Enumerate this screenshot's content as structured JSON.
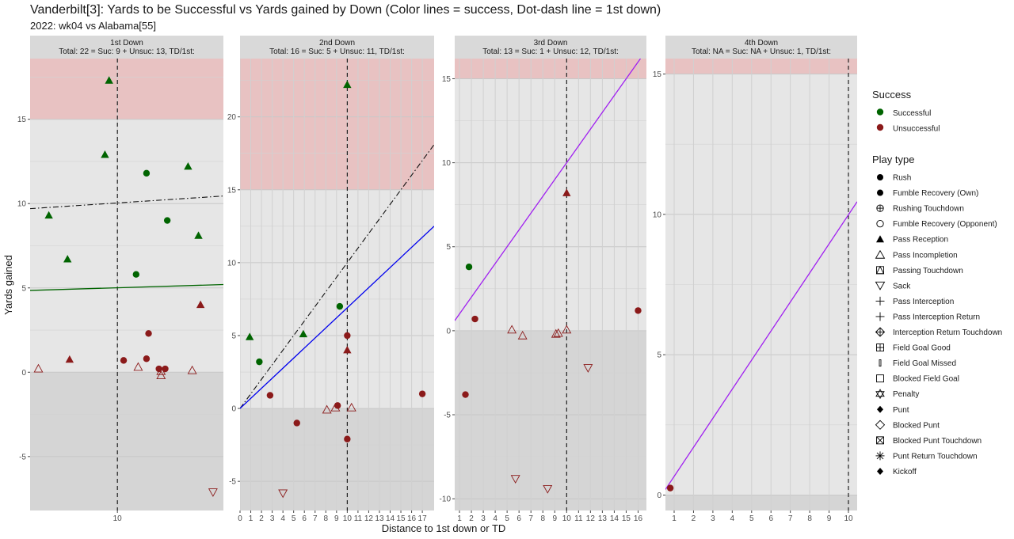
{
  "title": "Vanderbilt[3]: Yards to be Successful vs Yards gained by Down  (Color lines = success, Dot-dash line = 1st down)",
  "subtitle": "2022: wk04 vs Alabama[55]",
  "xlabel": "Distance to 1st down or TD",
  "ylabel": "Yards gained",
  "colors": {
    "successful": "#006400",
    "unsuccessful": "#8b1a1a",
    "panel_bg": "#e6e6e6",
    "strip_bg": "#d9d9d9",
    "success_zone": "#e8c2c2",
    "negative_zone": "#d5d5d5",
    "line_1st": "#006400",
    "line_2nd": "#0000ee",
    "line_3rd_4th": "#a020f0"
  },
  "legend": {
    "success_title": "Success",
    "success_items": [
      {
        "label": "Successful",
        "color": "#006400"
      },
      {
        "label": "Unsuccessful",
        "color": "#8b1a1a"
      }
    ],
    "playtype_title": "Play type",
    "playtype_items": [
      {
        "label": "Rush",
        "icon": "filled-circle"
      },
      {
        "label": "Fumble Recovery (Own)",
        "icon": "filled-circle"
      },
      {
        "label": "Rushing Touchdown",
        "icon": "circle-plus"
      },
      {
        "label": "Fumble Recovery (Opponent)",
        "icon": "open-circle"
      },
      {
        "label": "Pass Reception",
        "icon": "filled-triangle"
      },
      {
        "label": "Pass Incompletion",
        "icon": "open-triangle"
      },
      {
        "label": "Passing Touchdown",
        "icon": "square-triangle"
      },
      {
        "label": "Sack",
        "icon": "open-triangle-down"
      },
      {
        "label": "Pass Interception",
        "icon": "plus"
      },
      {
        "label": "Pass Interception Return",
        "icon": "plus"
      },
      {
        "label": "Interception Return Touchdown",
        "icon": "diamond-plus"
      },
      {
        "label": "Field Goal Good",
        "icon": "square-plus"
      },
      {
        "label": "Field Goal Missed",
        "icon": "small-bar"
      },
      {
        "label": "Blocked Field Goal",
        "icon": "open-square"
      },
      {
        "label": "Penalty",
        "icon": "star-of-david"
      },
      {
        "label": "Punt",
        "icon": "filled-diamond"
      },
      {
        "label": "Blocked Punt",
        "icon": "open-diamond"
      },
      {
        "label": "Blocked Punt Touchdown",
        "icon": "square-x"
      },
      {
        "label": "Punt Return Touchdown",
        "icon": "asterisk"
      },
      {
        "label": "Kickoff",
        "icon": "filled-diamond"
      }
    ]
  },
  "chart_data": [
    {
      "type": "scatter",
      "panel": "1st Down",
      "strip_line1": "1st Down",
      "strip_line2": "Total: 22 = Suc: 9 + Unsuc: 13, TD/1st:",
      "xlim": [
        5.8,
        15.1
      ],
      "ylim": [
        -8.2,
        18.6
      ],
      "x_ticks": [
        10
      ],
      "y_ticks": [
        -5,
        0,
        5,
        10,
        15
      ],
      "vline": 10,
      "success_zone": [
        15,
        18.6
      ],
      "firstdown_line": {
        "x1": 5.8,
        "y1": 9.7,
        "x2": 15.1,
        "y2": 10.45
      },
      "success_line": {
        "color": "#006400",
        "x1": 5.8,
        "y1": 4.85,
        "x2": 15.1,
        "y2": 5.2
      },
      "points": [
        {
          "x": 9.6,
          "y": 17.3,
          "shape": "filled-triangle",
          "success": true
        },
        {
          "x": 9.4,
          "y": 12.9,
          "shape": "filled-triangle",
          "success": true
        },
        {
          "x": 13.4,
          "y": 12.2,
          "shape": "filled-triangle",
          "success": true
        },
        {
          "x": 11.4,
          "y": 11.8,
          "shape": "filled-circle",
          "success": true
        },
        {
          "x": 6.7,
          "y": 9.3,
          "shape": "filled-triangle",
          "success": true
        },
        {
          "x": 12.4,
          "y": 9.0,
          "shape": "filled-circle",
          "success": true
        },
        {
          "x": 13.9,
          "y": 8.1,
          "shape": "filled-triangle",
          "success": true
        },
        {
          "x": 7.6,
          "y": 6.7,
          "shape": "filled-triangle",
          "success": true
        },
        {
          "x": 10.9,
          "y": 5.8,
          "shape": "filled-circle",
          "success": true
        },
        {
          "x": 14.0,
          "y": 4.0,
          "shape": "filled-triangle",
          "success": false
        },
        {
          "x": 11.5,
          "y": 2.3,
          "shape": "filled-circle",
          "success": false
        },
        {
          "x": 7.7,
          "y": 0.75,
          "shape": "filled-triangle",
          "success": false
        },
        {
          "x": 10.3,
          "y": 0.7,
          "shape": "filled-circle",
          "success": false
        },
        {
          "x": 11.4,
          "y": 0.8,
          "shape": "filled-circle",
          "success": false
        },
        {
          "x": 12.0,
          "y": 0.2,
          "shape": "filled-circle",
          "success": false
        },
        {
          "x": 12.3,
          "y": 0.2,
          "shape": "filled-circle",
          "success": false
        },
        {
          "x": 6.2,
          "y": 0.2,
          "shape": "open-triangle",
          "success": false
        },
        {
          "x": 11.0,
          "y": 0.3,
          "shape": "open-triangle",
          "success": false
        },
        {
          "x": 12.1,
          "y": -0.2,
          "shape": "open-triangle",
          "success": false
        },
        {
          "x": 12.1,
          "y": 0.05,
          "shape": "open-triangle",
          "success": false
        },
        {
          "x": 13.6,
          "y": 0.1,
          "shape": "open-triangle",
          "success": false
        },
        {
          "x": 14.6,
          "y": -7.1,
          "shape": "open-triangle-down",
          "success": false
        }
      ]
    },
    {
      "type": "scatter",
      "panel": "2nd Down",
      "strip_line1": "2nd Down",
      "strip_line2": "Total: 16 = Suc: 5 + Unsuc: 11, TD/1st:",
      "xlim": [
        0,
        18.1
      ],
      "ylim": [
        -7.0,
        24.0
      ],
      "x_ticks": [
        0,
        1,
        2,
        3,
        4,
        5,
        6,
        7,
        8,
        9,
        10,
        11,
        12,
        13,
        14,
        15,
        16,
        17
      ],
      "y_ticks": [
        -5,
        0,
        5,
        10,
        15,
        20
      ],
      "vline": 10,
      "success_zone": [
        15,
        24.0
      ],
      "firstdown_line": {
        "x1": 0,
        "y1": 0,
        "x2": 18.1,
        "y2": 18.1
      },
      "success_line": {
        "color": "#0000ee",
        "x1": 0,
        "y1": 0,
        "x2": 18.1,
        "y2": 12.5
      },
      "points": [
        {
          "x": 10.0,
          "y": 22.2,
          "shape": "filled-triangle",
          "success": true
        },
        {
          "x": 9.3,
          "y": 7.0,
          "shape": "filled-circle",
          "success": true
        },
        {
          "x": 0.9,
          "y": 4.9,
          "shape": "filled-triangle",
          "success": true
        },
        {
          "x": 5.9,
          "y": 5.1,
          "shape": "filled-triangle",
          "success": true
        },
        {
          "x": 1.8,
          "y": 3.2,
          "shape": "filled-circle",
          "success": true
        },
        {
          "x": 10.0,
          "y": 5.0,
          "shape": "filled-circle",
          "success": false
        },
        {
          "x": 10.0,
          "y": 4.0,
          "shape": "filled-triangle",
          "success": false
        },
        {
          "x": 2.8,
          "y": 0.9,
          "shape": "filled-circle",
          "success": false
        },
        {
          "x": 17.0,
          "y": 1.0,
          "shape": "filled-circle",
          "success": false
        },
        {
          "x": 9.1,
          "y": 0.2,
          "shape": "filled-circle",
          "success": false
        },
        {
          "x": 5.3,
          "y": -1.0,
          "shape": "filled-circle",
          "success": false
        },
        {
          "x": 10.0,
          "y": -2.1,
          "shape": "filled-circle",
          "success": false
        },
        {
          "x": 8.1,
          "y": -0.1,
          "shape": "open-triangle",
          "success": false
        },
        {
          "x": 8.9,
          "y": 0.05,
          "shape": "open-triangle",
          "success": false
        },
        {
          "x": 10.4,
          "y": 0.05,
          "shape": "open-triangle",
          "success": false
        },
        {
          "x": 4.0,
          "y": -5.8,
          "shape": "open-triangle-down",
          "success": false
        }
      ]
    },
    {
      "type": "scatter",
      "panel": "3rd Down",
      "strip_line1": "3rd Down",
      "strip_line2": "Total: 13 = Suc: 1 + Unsuc: 12, TD/1st:",
      "xlim": [
        0.6,
        16.7
      ],
      "ylim": [
        -10.7,
        16.2
      ],
      "x_ticks": [
        1,
        2,
        3,
        4,
        5,
        6,
        7,
        8,
        9,
        10,
        11,
        12,
        13,
        14,
        15,
        16
      ],
      "y_ticks": [
        -10,
        -5,
        0,
        5,
        10,
        15
      ],
      "vline": 10,
      "success_zone": [
        15,
        16.2
      ],
      "firstdown_line": null,
      "success_line": {
        "color": "#a020f0",
        "x1": 0.6,
        "y1": 0.6,
        "x2": 16.2,
        "y2": 16.2
      },
      "points": [
        {
          "x": 1.8,
          "y": 3.8,
          "shape": "filled-circle",
          "success": true
        },
        {
          "x": 10.0,
          "y": 8.2,
          "shape": "filled-triangle",
          "success": false
        },
        {
          "x": 2.3,
          "y": 0.7,
          "shape": "filled-circle",
          "success": false
        },
        {
          "x": 16.0,
          "y": 1.2,
          "shape": "filled-circle",
          "success": false
        },
        {
          "x": 1.5,
          "y": -3.8,
          "shape": "filled-circle",
          "success": false
        },
        {
          "x": 5.4,
          "y": 0.05,
          "shape": "open-triangle",
          "success": false
        },
        {
          "x": 6.3,
          "y": -0.3,
          "shape": "open-triangle",
          "success": false
        },
        {
          "x": 9.1,
          "y": -0.2,
          "shape": "open-triangle",
          "success": false
        },
        {
          "x": 9.3,
          "y": -0.15,
          "shape": "open-triangle",
          "success": false
        },
        {
          "x": 10.0,
          "y": 0.05,
          "shape": "open-triangle",
          "success": false
        },
        {
          "x": 11.8,
          "y": -2.2,
          "shape": "open-triangle-down",
          "success": false
        },
        {
          "x": 5.7,
          "y": -8.8,
          "shape": "open-triangle-down",
          "success": false
        },
        {
          "x": 8.4,
          "y": -9.4,
          "shape": "open-triangle-down",
          "success": false
        }
      ]
    },
    {
      "type": "scatter",
      "panel": "4th Down",
      "strip_line1": "4th Down",
      "strip_line2": "Total: NA = Suc: NA + Unsuc: 1, TD/1st:",
      "xlim": [
        0.55,
        10.45
      ],
      "ylim": [
        -0.55,
        15.55
      ],
      "x_ticks": [
        1,
        2,
        3,
        4,
        5,
        6,
        7,
        8,
        9,
        10
      ],
      "y_ticks": [
        0,
        5,
        10,
        15
      ],
      "vline": 10,
      "success_zone": [
        15,
        15.55
      ],
      "firstdown_line": null,
      "success_line": {
        "color": "#a020f0",
        "x1": 0.55,
        "y1": 0.2,
        "x2": 10.45,
        "y2": 10.45
      },
      "points": [
        {
          "x": 0.8,
          "y": 0.25,
          "shape": "filled-circle",
          "success": false
        }
      ]
    }
  ]
}
